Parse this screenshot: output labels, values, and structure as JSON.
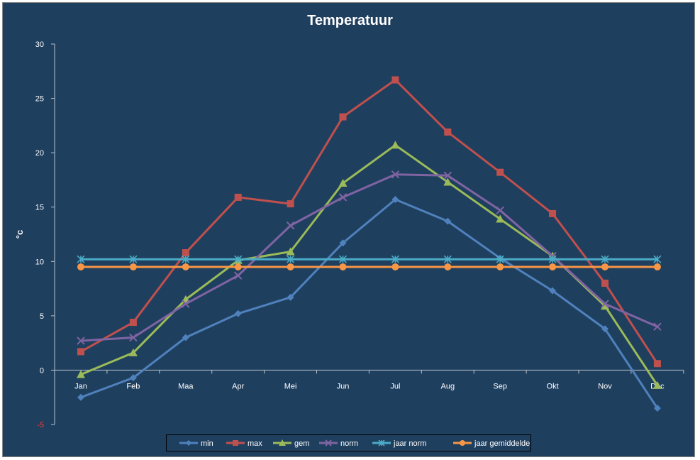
{
  "chart_data": {
    "type": "line",
    "title": "Temperatuur",
    "xlabel": "",
    "ylabel": "°c",
    "categories": [
      "Jan",
      "Feb",
      "Maa",
      "Apr",
      "Mei",
      "Jun",
      "Jul",
      "Aug",
      "Sep",
      "Okt",
      "Nov",
      "Dec"
    ],
    "ylim": [
      -5,
      30
    ],
    "yticks": [
      -5,
      0,
      5,
      10,
      15,
      20,
      25,
      30
    ],
    "grid": false,
    "legend_position": "bottom",
    "series": [
      {
        "name": "min",
        "color": "#4f81bd",
        "marker": "diamond",
        "values": [
          -2.5,
          -0.7,
          3.0,
          5.2,
          6.7,
          11.7,
          15.7,
          13.7,
          10.3,
          7.3,
          3.8,
          -3.5
        ]
      },
      {
        "name": "max",
        "color": "#c0504d",
        "marker": "square",
        "values": [
          1.7,
          4.4,
          10.8,
          15.9,
          15.3,
          23.3,
          26.7,
          21.9,
          18.2,
          14.4,
          8.0,
          0.6
        ]
      },
      {
        "name": "gem",
        "color": "#9bbb59",
        "marker": "triangle",
        "values": [
          -0.4,
          1.6,
          6.5,
          10.1,
          10.9,
          17.2,
          20.7,
          17.3,
          13.9,
          10.5,
          5.9,
          -1.4
        ]
      },
      {
        "name": "norm",
        "color": "#8064a2",
        "marker": "x",
        "values": [
          2.7,
          3.0,
          6.1,
          8.7,
          13.3,
          15.9,
          18.0,
          17.9,
          14.7,
          10.5,
          6.1,
          4.0
        ]
      },
      {
        "name": "jaar norm",
        "color": "#4bacc6",
        "marker": "star",
        "values": [
          10.2,
          10.2,
          10.2,
          10.2,
          10.2,
          10.2,
          10.2,
          10.2,
          10.2,
          10.2,
          10.2,
          10.2
        ]
      },
      {
        "name": "jaar gemiddelde",
        "color": "#f79646",
        "marker": "circle",
        "values": [
          9.5,
          9.5,
          9.5,
          9.5,
          9.5,
          9.5,
          9.5,
          9.5,
          9.5,
          9.5,
          9.5,
          9.5
        ]
      }
    ]
  }
}
